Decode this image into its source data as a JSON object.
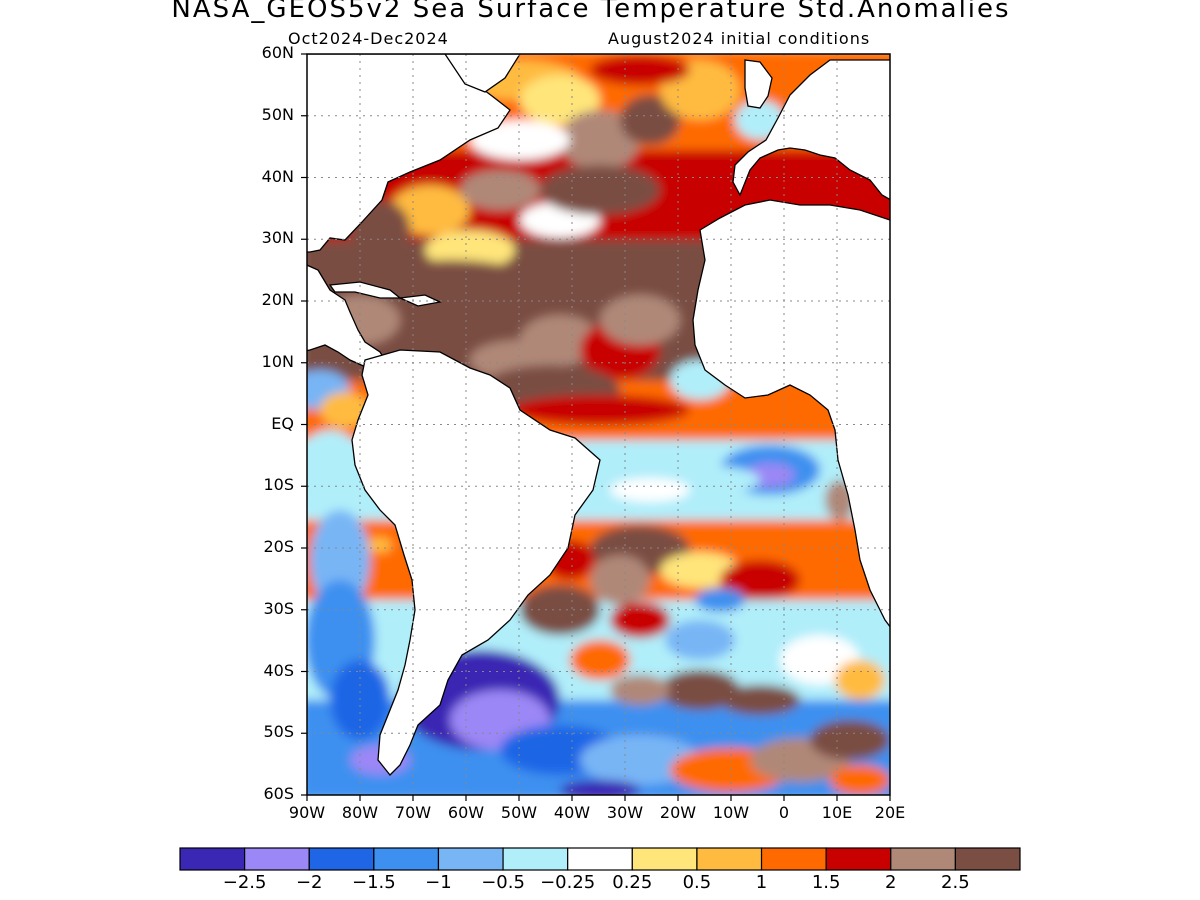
{
  "title": "NASA_GEOS5v2 Sea Surface Temperature Std.Anomalies",
  "subtitle_left": "Oct2024-Dec2024",
  "subtitle_right": "August2024 initial conditions",
  "lat_labels": [
    "60N",
    "50N",
    "40N",
    "30N",
    "20N",
    "10N",
    "EQ",
    "10S",
    "20S",
    "30S",
    "40S",
    "50S",
    "60S"
  ],
  "lon_labels": [
    "90W",
    "80W",
    "70W",
    "60W",
    "50W",
    "40W",
    "30W",
    "20W",
    "10W",
    "0",
    "10E",
    "20E"
  ],
  "colorbar": {
    "colors": [
      "#3a28b4",
      "#9b87f5",
      "#1f66e6",
      "#3e90f0",
      "#78b5f5",
      "#b0eefa",
      "#ffffff",
      "#ffe57a",
      "#ffbb40",
      "#ff6a00",
      "#c80000",
      "#b08878",
      "#7a4e42"
    ],
    "labels": [
      "-2.5",
      "-2",
      "-1.5",
      "-1",
      "-0.5",
      "-0.25",
      "0.25",
      "0.5",
      "1",
      "1.5",
      "2",
      "2.5"
    ]
  },
  "chart_data": {
    "type": "heatmap",
    "title": "NASA_GEOS5v2 Sea Surface Temperature Std.Anomalies",
    "subtitle": "Oct2024-Dec2024 / August2024 initial conditions",
    "x_range": [
      "90W",
      "20E"
    ],
    "y_range": [
      "60S",
      "60N"
    ],
    "grid": true,
    "color_scale_breaks": [
      -2.5,
      -2,
      -1.5,
      -1,
      -0.5,
      -0.25,
      0.25,
      0.5,
      1,
      1.5,
      2,
      2.5
    ]
  }
}
